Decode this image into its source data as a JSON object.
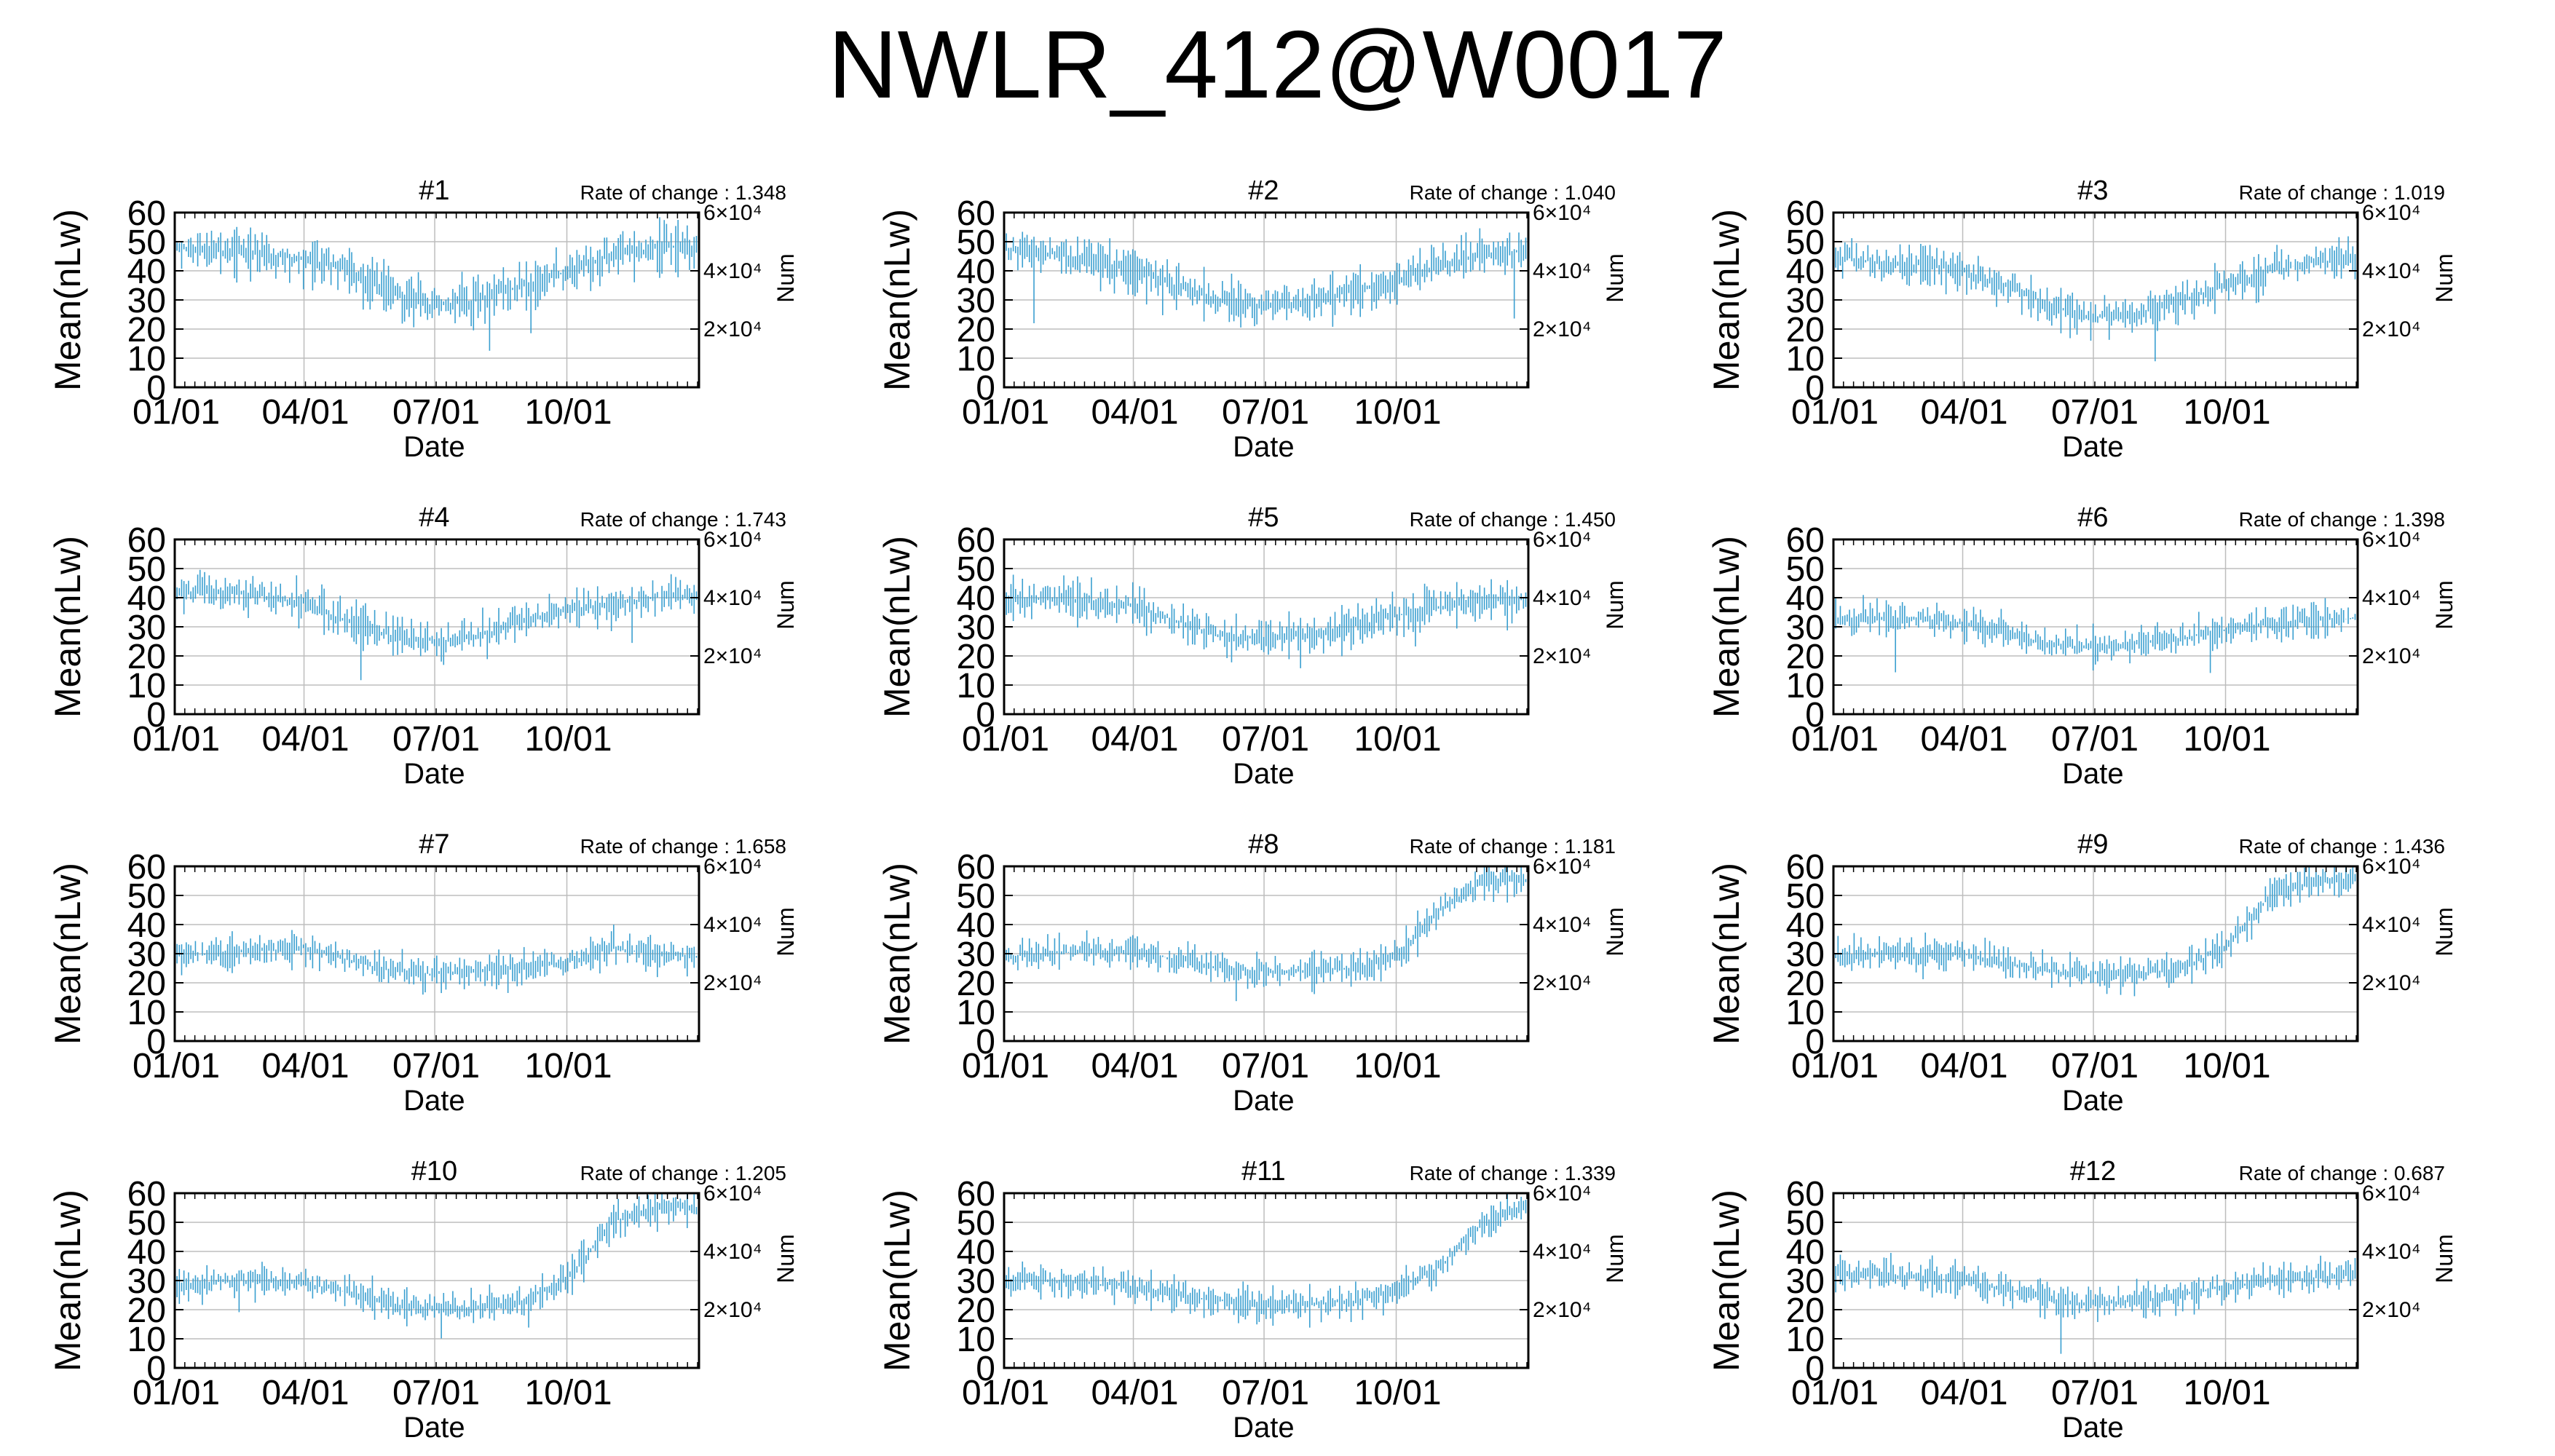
{
  "title": "NWLR_412@W0017",
  "chart_data": [
    {
      "type": "line",
      "title": "#1",
      "rate_label": "Rate of change : 1.348",
      "xlabel": "Date",
      "ylabel": "Mean(nLw)",
      "y2label": "Num",
      "x_ticks": [
        "01/01",
        "04/01",
        "07/01",
        "10/01"
      ],
      "y_ticks": [
        "0",
        "10",
        "20",
        "30",
        "40",
        "50",
        "60"
      ],
      "y2_ticks": [
        "2×10⁴",
        "4×10⁴",
        "6×10⁴"
      ],
      "ylim": [
        0,
        60
      ],
      "y2lim": [
        0,
        60000
      ],
      "grid": true,
      "series": [
        {
          "color": "#3a9fd0",
          "x": [
            "01/01",
            "02/01",
            "03/01",
            "04/01",
            "05/01",
            "06/01",
            "07/01",
            "08/01",
            "09/01",
            "10/01",
            "11/01",
            "12/01",
            "12/31"
          ],
          "values": [
            48,
            47,
            46,
            44,
            40,
            32,
            28,
            30,
            35,
            40,
            45,
            48,
            48
          ],
          "spread": 8
        }
      ]
    },
    {
      "type": "line",
      "title": "#2",
      "rate_label": "Rate of change : 1.040",
      "xlabel": "Date",
      "ylabel": "Mean(nLw)",
      "y2label": "Num",
      "x_ticks": [
        "01/01",
        "04/01",
        "07/01",
        "10/01"
      ],
      "y_ticks": [
        "0",
        "10",
        "20",
        "30",
        "40",
        "50",
        "60"
      ],
      "y2_ticks": [
        "2×10⁴",
        "4×10⁴",
        "6×10⁴"
      ],
      "ylim": [
        0,
        60
      ],
      "y2lim": [
        0,
        60000
      ],
      "grid": true,
      "series": [
        {
          "color": "#3a9fd0",
          "x": [
            "01/01",
            "02/01",
            "03/01",
            "04/01",
            "05/01",
            "06/01",
            "07/01",
            "08/01",
            "09/01",
            "10/01",
            "11/01",
            "12/01",
            "12/31"
          ],
          "values": [
            47,
            46,
            44,
            40,
            35,
            30,
            28,
            30,
            33,
            37,
            42,
            46,
            47
          ],
          "spread": 8
        }
      ]
    },
    {
      "type": "line",
      "title": "#3",
      "rate_label": "Rate of change : 1.019",
      "xlabel": "Date",
      "ylabel": "Mean(nLw)",
      "y2label": "Num",
      "x_ticks": [
        "01/01",
        "04/01",
        "07/01",
        "10/01"
      ],
      "y_ticks": [
        "0",
        "10",
        "20",
        "30",
        "40",
        "50",
        "60"
      ],
      "y2_ticks": [
        "2×10⁴",
        "4×10⁴",
        "6×10⁴"
      ],
      "ylim": [
        0,
        60
      ],
      "y2lim": [
        0,
        60000
      ],
      "grid": true,
      "series": [
        {
          "color": "#3a9fd0",
          "x": [
            "01/01",
            "02/01",
            "03/01",
            "04/01",
            "05/01",
            "06/01",
            "07/01",
            "08/01",
            "09/01",
            "10/01",
            "11/01",
            "12/01",
            "12/31"
          ],
          "values": [
            45,
            43,
            42,
            40,
            35,
            28,
            24,
            25,
            30,
            35,
            40,
            43,
            44
          ],
          "spread": 7
        }
      ]
    },
    {
      "type": "line",
      "title": "#4",
      "rate_label": "Rate of change : 1.743",
      "xlabel": "Date",
      "ylabel": "Mean(nLw)",
      "y2label": "Num",
      "x_ticks": [
        "01/01",
        "04/01",
        "07/01",
        "10/01"
      ],
      "y_ticks": [
        "0",
        "10",
        "20",
        "30",
        "40",
        "50",
        "60"
      ],
      "y2_ticks": [
        "2×10⁴",
        "4×10⁴",
        "6×10⁴"
      ],
      "ylim": [
        0,
        60
      ],
      "y2lim": [
        0,
        60000
      ],
      "grid": true,
      "series": [
        {
          "color": "#3a9fd0",
          "x": [
            "01/01",
            "02/01",
            "03/01",
            "04/01",
            "05/01",
            "06/01",
            "07/01",
            "08/01",
            "09/01",
            "10/01",
            "11/01",
            "12/01",
            "12/31"
          ],
          "values": [
            42,
            42,
            41,
            38,
            32,
            27,
            25,
            27,
            32,
            36,
            38,
            40,
            40
          ],
          "spread": 7
        }
      ]
    },
    {
      "type": "line",
      "title": "#5",
      "rate_label": "Rate of change : 1.450",
      "xlabel": "Date",
      "ylabel": "Mean(nLw)",
      "y2label": "Num",
      "x_ticks": [
        "01/01",
        "04/01",
        "07/01",
        "10/01"
      ],
      "y_ticks": [
        "0",
        "10",
        "20",
        "30",
        "40",
        "50",
        "60"
      ],
      "y2_ticks": [
        "2×10⁴",
        "4×10⁴",
        "6×10⁴"
      ],
      "ylim": [
        0,
        60
      ],
      "y2lim": [
        0,
        60000
      ],
      "grid": true,
      "series": [
        {
          "color": "#3a9fd0",
          "x": [
            "01/01",
            "02/01",
            "03/01",
            "04/01",
            "05/01",
            "06/01",
            "07/01",
            "08/01",
            "09/01",
            "10/01",
            "11/01",
            "12/01",
            "12/31"
          ],
          "values": [
            40,
            40,
            39,
            37,
            32,
            27,
            26,
            27,
            30,
            34,
            37,
            39,
            40
          ],
          "spread": 7
        }
      ]
    },
    {
      "type": "line",
      "title": "#6",
      "rate_label": "Rate of change : 1.398",
      "xlabel": "Date",
      "ylabel": "Mean(nLw)",
      "y2label": "Num",
      "x_ticks": [
        "01/01",
        "04/01",
        "07/01",
        "10/01"
      ],
      "y_ticks": [
        "0",
        "10",
        "20",
        "30",
        "40",
        "50",
        "60"
      ],
      "y2_ticks": [
        "2×10⁴",
        "4×10⁴",
        "6×10⁴"
      ],
      "ylim": [
        0,
        60
      ],
      "y2lim": [
        0,
        60000
      ],
      "grid": true,
      "series": [
        {
          "color": "#3a9fd0",
          "x": [
            "01/01",
            "02/01",
            "03/01",
            "04/01",
            "05/01",
            "06/01",
            "07/01",
            "08/01",
            "09/01",
            "10/01",
            "11/01",
            "12/01",
            "12/31"
          ],
          "values": [
            33,
            33,
            33,
            31,
            28,
            24,
            23,
            24,
            26,
            29,
            31,
            32,
            33
          ],
          "spread": 6
        }
      ]
    },
    {
      "type": "line",
      "title": "#7",
      "rate_label": "Rate of change : 1.658",
      "xlabel": "Date",
      "ylabel": "Mean(nLw)",
      "y2label": "Num",
      "x_ticks": [
        "01/01",
        "04/01",
        "07/01",
        "10/01"
      ],
      "y_ticks": [
        "0",
        "10",
        "20",
        "30",
        "40",
        "50",
        "60"
      ],
      "y2_ticks": [
        "2×10⁴",
        "4×10⁴",
        "6×10⁴"
      ],
      "ylim": [
        0,
        60
      ],
      "y2lim": [
        0,
        60000
      ],
      "grid": true,
      "series": [
        {
          "color": "#3a9fd0",
          "x": [
            "01/01",
            "02/01",
            "03/01",
            "04/01",
            "05/01",
            "06/01",
            "07/01",
            "08/01",
            "09/01",
            "10/01",
            "11/01",
            "12/01",
            "12/31"
          ],
          "values": [
            29,
            30,
            31,
            32,
            28,
            24,
            23,
            24,
            25,
            27,
            32,
            30,
            29
          ],
          "spread": 6
        }
      ]
    },
    {
      "type": "line",
      "title": "#8",
      "rate_label": "Rate of change : 1.181",
      "xlabel": "Date",
      "ylabel": "Mean(nLw)",
      "y2label": "Num",
      "x_ticks": [
        "01/01",
        "04/01",
        "07/01",
        "10/01"
      ],
      "y_ticks": [
        "0",
        "10",
        "20",
        "30",
        "40",
        "50",
        "60"
      ],
      "y2_ticks": [
        "2×10⁴",
        "4×10⁴",
        "6×10⁴"
      ],
      "ylim": [
        0,
        60
      ],
      "y2lim": [
        0,
        60000
      ],
      "grid": true,
      "series": [
        {
          "color": "#3a9fd0",
          "x": [
            "01/01",
            "02/01",
            "03/01",
            "04/01",
            "05/01",
            "06/01",
            "07/01",
            "08/01",
            "09/01",
            "10/01",
            "11/01",
            "12/01",
            "12/31"
          ],
          "values": [
            29,
            30,
            31,
            31,
            28,
            25,
            24,
            24,
            25,
            29,
            45,
            55,
            55
          ],
          "spread": 6
        }
      ]
    },
    {
      "type": "line",
      "title": "#9",
      "rate_label": "Rate of change : 1.436",
      "xlabel": "Date",
      "ylabel": "Mean(nLw)",
      "y2label": "Num",
      "x_ticks": [
        "01/01",
        "04/01",
        "07/01",
        "10/01"
      ],
      "y_ticks": [
        "0",
        "10",
        "20",
        "30",
        "40",
        "50",
        "60"
      ],
      "y2_ticks": [
        "2×10⁴",
        "4×10⁴",
        "6×10⁴"
      ],
      "ylim": [
        0,
        60
      ],
      "y2lim": [
        0,
        60000
      ],
      "grid": true,
      "series": [
        {
          "color": "#3a9fd0",
          "x": [
            "01/01",
            "02/01",
            "03/01",
            "04/01",
            "05/01",
            "06/01",
            "07/01",
            "08/01",
            "09/01",
            "10/01",
            "11/01",
            "12/01",
            "12/31"
          ],
          "values": [
            29,
            30,
            30,
            30,
            27,
            24,
            23,
            23,
            25,
            32,
            50,
            55,
            55
          ],
          "spread": 6
        }
      ]
    },
    {
      "type": "line",
      "title": "#10",
      "rate_label": "Rate of change : 1.205",
      "xlabel": "Date",
      "ylabel": "Mean(nLw)",
      "y2label": "Num",
      "x_ticks": [
        "01/01",
        "04/01",
        "07/01",
        "10/01"
      ],
      "y_ticks": [
        "0",
        "10",
        "20",
        "30",
        "40",
        "50",
        "60"
      ],
      "y2_ticks": [
        "2×10⁴",
        "4×10⁴",
        "6×10⁴"
      ],
      "ylim": [
        0,
        60
      ],
      "y2lim": [
        0,
        60000
      ],
      "grid": true,
      "series": [
        {
          "color": "#3a9fd0",
          "x": [
            "01/01",
            "02/01",
            "03/01",
            "04/01",
            "05/01",
            "06/01",
            "07/01",
            "08/01",
            "09/01",
            "10/01",
            "11/01",
            "12/01",
            "12/31"
          ],
          "values": [
            28,
            30,
            30,
            29,
            26,
            22,
            20,
            21,
            23,
            30,
            50,
            55,
            55
          ],
          "spread": 6
        }
      ]
    },
    {
      "type": "line",
      "title": "#11",
      "rate_label": "Rate of change : 1.339",
      "xlabel": "Date",
      "ylabel": "Mean(nLw)",
      "y2label": "Num",
      "x_ticks": [
        "01/01",
        "04/01",
        "07/01",
        "10/01"
      ],
      "y_ticks": [
        "0",
        "10",
        "20",
        "30",
        "40",
        "50",
        "60"
      ],
      "y2_ticks": [
        "2×10⁴",
        "4×10⁴",
        "6×10⁴"
      ],
      "ylim": [
        0,
        60
      ],
      "y2lim": [
        0,
        60000
      ],
      "grid": true,
      "series": [
        {
          "color": "#3a9fd0",
          "x": [
            "01/01",
            "02/01",
            "03/01",
            "04/01",
            "05/01",
            "06/01",
            "07/01",
            "08/01",
            "09/01",
            "10/01",
            "11/01",
            "12/01",
            "12/31"
          ],
          "values": [
            30,
            30,
            29,
            28,
            25,
            23,
            22,
            22,
            23,
            27,
            35,
            50,
            55
          ],
          "spread": 6
        }
      ]
    },
    {
      "type": "line",
      "title": "#12",
      "rate_label": "Rate of change : 0.687",
      "xlabel": "Date",
      "ylabel": "Mean(nLw)",
      "y2label": "Num",
      "x_ticks": [
        "01/01",
        "04/01",
        "07/01",
        "10/01"
      ],
      "y_ticks": [
        "0",
        "10",
        "20",
        "30",
        "40",
        "50",
        "60"
      ],
      "y2_ticks": [
        "2×10⁴",
        "4×10⁴",
        "6×10⁴"
      ],
      "ylim": [
        0,
        60
      ],
      "y2lim": [
        0,
        60000
      ],
      "grid": true,
      "series": [
        {
          "color": "#3a9fd0",
          "x": [
            "01/01",
            "02/01",
            "03/01",
            "04/01",
            "05/01",
            "06/01",
            "07/01",
            "08/01",
            "09/01",
            "10/01",
            "11/01",
            "12/01",
            "12/31"
          ],
          "values": [
            32,
            32,
            31,
            30,
            27,
            23,
            22,
            23,
            25,
            28,
            30,
            31,
            32
          ],
          "spread": 6
        }
      ]
    }
  ]
}
